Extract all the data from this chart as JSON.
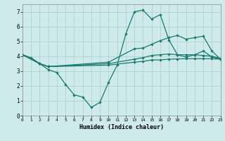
{
  "xlabel": "Humidex (Indice chaleur)",
  "xlim": [
    0,
    23
  ],
  "ylim": [
    0,
    7.5
  ],
  "xticks": [
    0,
    1,
    2,
    3,
    4,
    5,
    6,
    7,
    8,
    9,
    10,
    11,
    12,
    13,
    14,
    15,
    16,
    17,
    18,
    19,
    20,
    21,
    22,
    23
  ],
  "yticks": [
    0,
    1,
    2,
    3,
    4,
    5,
    6,
    7
  ],
  "bg_color": "#ceeaea",
  "grid_color": "#aacccc",
  "line_color": "#1a7a6e",
  "lines": [
    {
      "x": [
        0,
        1,
        2,
        3,
        4,
        5,
        6,
        7,
        8,
        9,
        10,
        11,
        12,
        13,
        14,
        15,
        16,
        17,
        18,
        19,
        20,
        21,
        22,
        23
      ],
      "y": [
        4.1,
        3.9,
        3.5,
        3.1,
        2.9,
        2.1,
        1.4,
        1.25,
        0.55,
        0.9,
        2.25,
        3.4,
        5.5,
        7.0,
        7.1,
        6.5,
        6.8,
        5.1,
        4.1,
        3.95,
        4.1,
        4.35,
        3.95,
        3.8
      ]
    },
    {
      "x": [
        0,
        2,
        3,
        10,
        13,
        14,
        15,
        16,
        17,
        18,
        19,
        20,
        21,
        22,
        23
      ],
      "y": [
        4.1,
        3.5,
        3.3,
        3.6,
        4.5,
        4.55,
        4.8,
        5.05,
        5.25,
        5.4,
        5.15,
        5.25,
        5.35,
        4.35,
        3.8
      ]
    },
    {
      "x": [
        0,
        2,
        3,
        10,
        13,
        14,
        15,
        16,
        17,
        18,
        19,
        20,
        21,
        22,
        23
      ],
      "y": [
        4.1,
        3.5,
        3.3,
        3.5,
        3.8,
        3.9,
        4.05,
        4.1,
        4.15,
        4.1,
        4.1,
        4.1,
        4.05,
        4.0,
        3.85
      ]
    },
    {
      "x": [
        0,
        2,
        3,
        10,
        13,
        14,
        15,
        16,
        17,
        18,
        19,
        20,
        21,
        22,
        23
      ],
      "y": [
        4.1,
        3.5,
        3.3,
        3.4,
        3.6,
        3.65,
        3.75,
        3.75,
        3.8,
        3.82,
        3.83,
        3.83,
        3.83,
        3.83,
        3.8
      ]
    }
  ]
}
